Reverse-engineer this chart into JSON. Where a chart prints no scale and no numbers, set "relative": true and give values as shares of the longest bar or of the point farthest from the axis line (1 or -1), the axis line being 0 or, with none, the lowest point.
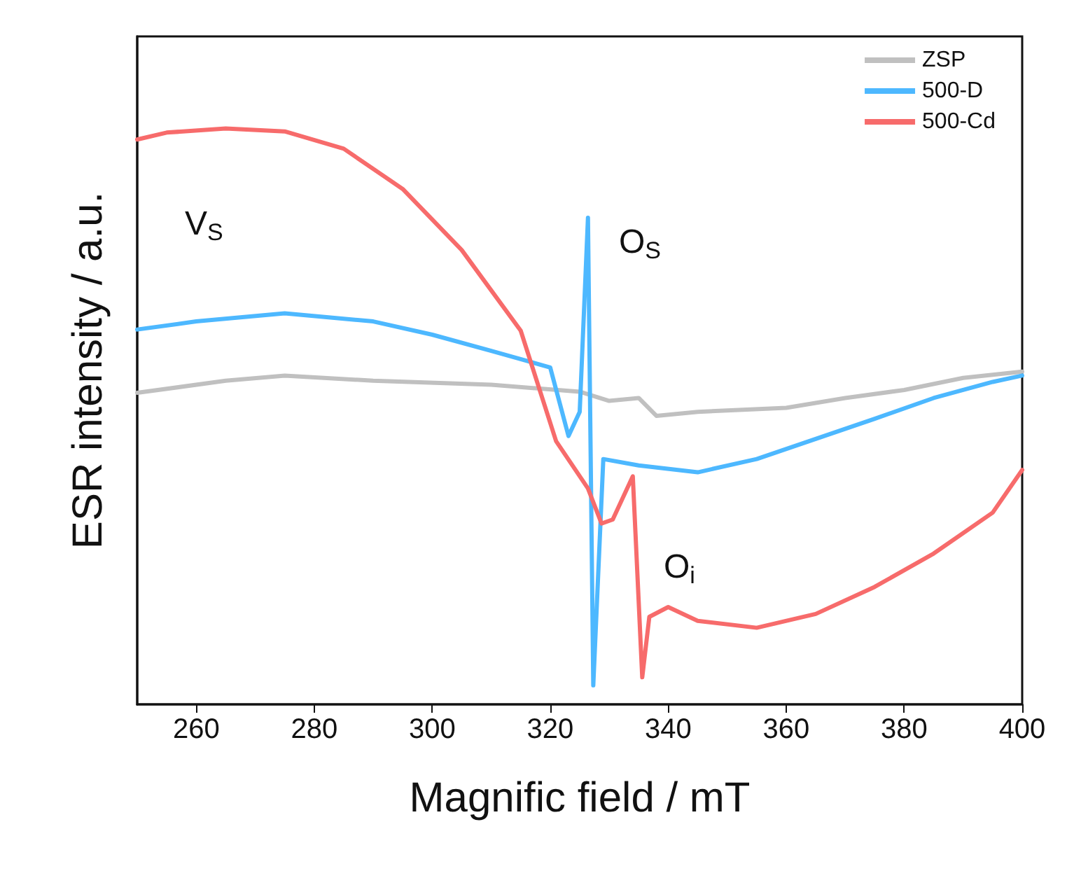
{
  "chart_data": {
    "type": "line",
    "xlabel": "Magnific field / mT",
    "ylabel": "ESR intensity / a.u.",
    "relative": true,
    "xlim": [
      250,
      400
    ],
    "xticks": [
      260,
      280,
      300,
      320,
      340,
      360,
      380,
      400
    ],
    "legend": "top right",
    "grid": false,
    "marker": "none",
    "line_style": "solid",
    "annotations": [
      "V$_{S}$",
      "O$_{S}$",
      "O$_{i}$"
    ],
    "series": [
      {
        "name": "ZSP",
        "color": "#c0c0c0",
        "x": [
          250,
          265,
          275,
          290,
          310,
          325,
          330,
          335,
          338,
          345,
          360,
          370,
          380,
          390,
          400
        ],
        "values": [
          0.541,
          0.562,
          0.571,
          0.562,
          0.555,
          0.543,
          0.527,
          0.532,
          0.501,
          0.508,
          0.515,
          0.532,
          0.546,
          0.567,
          0.578
        ]
      },
      {
        "name": "500-D",
        "color": "#4db8ff",
        "x": [
          250,
          260,
          275,
          290,
          300,
          310,
          320,
          323.1,
          325,
          326.4,
          327.3,
          329,
          335,
          345,
          355,
          365,
          375,
          385,
          395,
          400
        ],
        "values": [
          0.651,
          0.665,
          0.679,
          0.665,
          0.642,
          0.614,
          0.585,
          0.466,
          0.508,
          0.845,
          0.033,
          0.426,
          0.415,
          0.403,
          0.426,
          0.461,
          0.496,
          0.532,
          0.56,
          0.571
        ]
      },
      {
        "name": "500-Cd",
        "color": "#f76b6b",
        "x": [
          250,
          255,
          265,
          275,
          285,
          295,
          305,
          315,
          321,
          326.4,
          328.7,
          330.6,
          334,
          335.6,
          336.8,
          340,
          345,
          355,
          365,
          375,
          385,
          395,
          400
        ],
        "values": [
          0.981,
          0.993,
          1,
          0.995,
          0.965,
          0.895,
          0.789,
          0.649,
          0.457,
          0.375,
          0.314,
          0.321,
          0.396,
          0.047,
          0.152,
          0.169,
          0.145,
          0.133,
          0.157,
          0.204,
          0.262,
          0.333,
          0.407
        ]
      }
    ]
  }
}
